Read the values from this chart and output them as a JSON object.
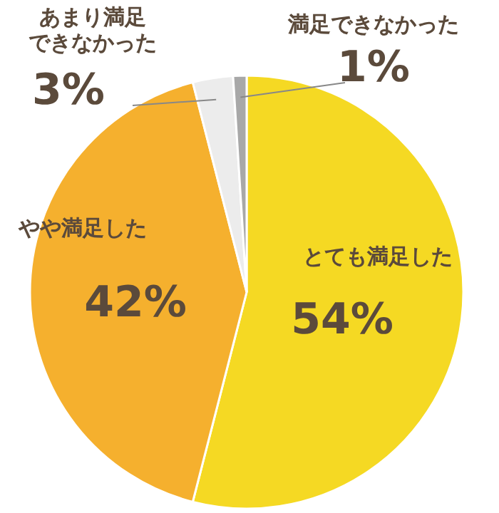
{
  "chart_data": {
    "type": "pie",
    "categories": [
      "とても満足した",
      "やや満足した",
      "あまり満足できなかった",
      "満足できなかった"
    ],
    "values": [
      54,
      42,
      3,
      1
    ],
    "colors": [
      "#f5d923",
      "#f5b02e",
      "#ececec",
      "#a8a8a8"
    ],
    "value_labels": [
      "54%",
      "42%",
      "3%",
      "1%"
    ]
  }
}
